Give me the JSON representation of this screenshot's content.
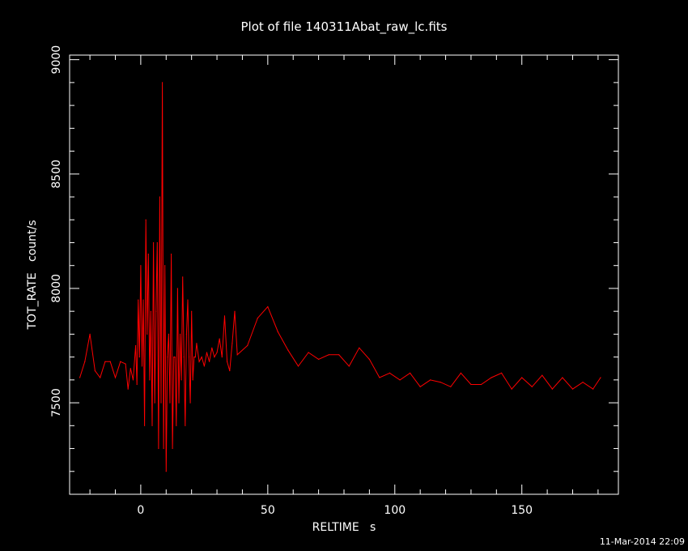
{
  "chart_data": {
    "type": "line",
    "title": "Plot of file 140311Abat_raw_lc.fits",
    "xlabel": "RELTIME   s",
    "ylabel": "TOT_RATE   count/s",
    "xlim": [
      -28,
      188
    ],
    "ylim": [
      7100,
      9020
    ],
    "xticks": [
      0,
      50,
      100,
      150
    ],
    "yticks": [
      7500,
      8000,
      8500,
      9000
    ],
    "grid": false,
    "series": [
      {
        "color": "#ff0000",
        "x": [
          -24,
          -22,
          -20,
          -18,
          -16,
          -14,
          -12,
          -10,
          -8,
          -6,
          -5,
          -4,
          -3,
          -2,
          -1.5,
          -1,
          -0.5,
          0,
          0.5,
          1,
          1.5,
          2,
          2.5,
          3,
          3.5,
          4,
          4.5,
          5,
          5.5,
          6,
          6.5,
          7,
          7.5,
          8,
          8.5,
          9,
          9.5,
          10,
          10.5,
          11,
          11.5,
          12,
          12.5,
          13,
          13.5,
          14,
          14.5,
          15,
          15.5,
          16,
          16.5,
          17,
          17.5,
          18,
          18.5,
          19,
          19.5,
          20,
          20.5,
          21,
          21.5,
          22,
          23,
          24,
          25,
          26,
          27,
          28,
          29,
          30,
          31,
          32,
          33,
          34,
          35,
          36,
          37,
          38,
          42,
          46,
          50,
          54,
          58,
          62,
          66,
          70,
          74,
          78,
          82,
          86,
          90,
          94,
          98,
          102,
          106,
          110,
          114,
          118,
          122,
          126,
          130,
          134,
          138,
          142,
          146,
          150,
          154,
          158,
          162,
          166,
          170,
          174,
          178,
          181
        ],
        "y": [
          7610,
          7680,
          7800,
          7640,
          7610,
          7680,
          7680,
          7610,
          7680,
          7670,
          7560,
          7650,
          7600,
          7750,
          7580,
          7950,
          7700,
          8100,
          7660,
          7950,
          7400,
          8300,
          7800,
          8150,
          7600,
          7900,
          7400,
          8200,
          7500,
          7900,
          8200,
          7300,
          8400,
          7500,
          8900,
          7300,
          8100,
          7200,
          7700,
          7800,
          7500,
          8150,
          7300,
          7700,
          7700,
          7400,
          8000,
          7500,
          7800,
          7600,
          8050,
          7700,
          7400,
          7800,
          7950,
          7700,
          7500,
          7900,
          7600,
          7700,
          7700,
          7760,
          7680,
          7700,
          7660,
          7720,
          7680,
          7740,
          7700,
          7720,
          7780,
          7700,
          7880,
          7680,
          7640,
          7760,
          7900,
          7710,
          7750,
          7870,
          7920,
          7810,
          7730,
          7660,
          7720,
          7690,
          7710,
          7710,
          7660,
          7740,
          7690,
          7610,
          7630,
          7600,
          7630,
          7570,
          7600,
          7590,
          7570,
          7630,
          7580,
          7580,
          7610,
          7630,
          7560,
          7610,
          7570,
          7620,
          7560,
          7610,
          7560,
          7590,
          7560,
          7610
        ]
      }
    ]
  },
  "timestamp": "11-Mar-2014 22:09"
}
